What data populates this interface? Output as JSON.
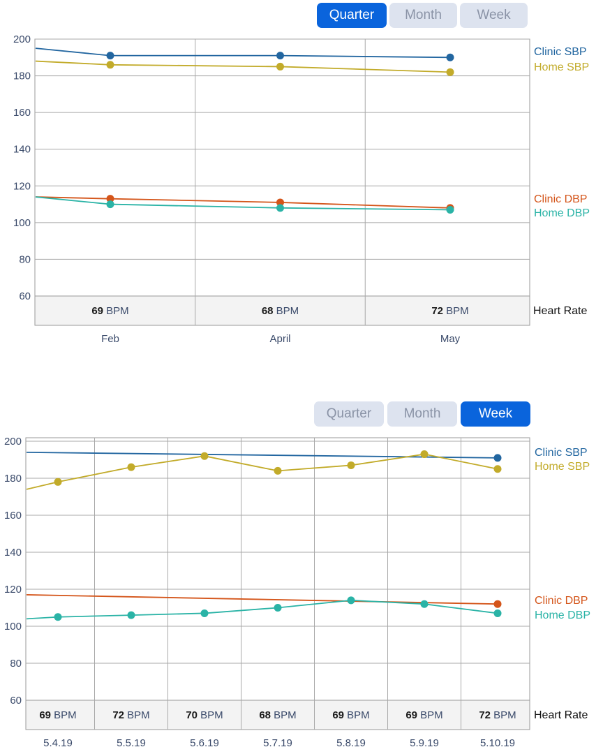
{
  "tabs": {
    "quarter": "Quarter",
    "month": "Month",
    "week": "Week"
  },
  "colors": {
    "clinic_sbp": "#2266a0",
    "home_sbp": "#c2ab2a",
    "clinic_dbp": "#d4551a",
    "home_dbp": "#2ab3a6",
    "active_tab": "#0a64dc",
    "inactive_tab": "#dde3ef"
  },
  "chart_data": [
    {
      "type": "line",
      "active_tab": "Quarter",
      "categories": [
        "Feb",
        "April",
        "May"
      ],
      "ylim": [
        60,
        200
      ],
      "yticks": [
        60,
        80,
        100,
        120,
        140,
        160,
        180,
        200
      ],
      "grid": true,
      "legend_placement": "right",
      "series": [
        {
          "name": "Clinic SBP",
          "key": "clinic_sbp",
          "start": 195,
          "values": [
            191,
            191,
            190
          ]
        },
        {
          "name": "Home SBP",
          "key": "home_sbp",
          "start": 188,
          "values": [
            186,
            185,
            182
          ]
        },
        {
          "name": "Clinic DBP",
          "key": "clinic_dbp",
          "start": 114,
          "values": [
            113,
            111,
            108
          ]
        },
        {
          "name": "Home DBP",
          "key": "home_dbp",
          "start": 114,
          "values": [
            110,
            108,
            107
          ]
        }
      ],
      "heart_rate": {
        "label": "Heart Rate",
        "unit": "BPM",
        "values": [
          69,
          68,
          72
        ]
      }
    },
    {
      "type": "line",
      "active_tab": "Week",
      "categories": [
        "5.4.19",
        "5.5.19",
        "5.6.19",
        "5.7.19",
        "5.8.19",
        "5.9.19",
        "5.10.19"
      ],
      "ylim": [
        60,
        200
      ],
      "yticks": [
        60,
        80,
        100,
        120,
        140,
        160,
        180,
        200
      ],
      "grid": true,
      "legend_placement": "right",
      "series": [
        {
          "name": "Clinic SBP",
          "key": "clinic_sbp",
          "start": 194,
          "values": [
            null,
            null,
            null,
            null,
            null,
            null,
            191
          ]
        },
        {
          "name": "Home SBP",
          "key": "home_sbp",
          "start": 174,
          "values": [
            178,
            186,
            192,
            184,
            187,
            193,
            185
          ]
        },
        {
          "name": "Clinic DBP",
          "key": "clinic_dbp",
          "start": 117,
          "values": [
            null,
            null,
            null,
            null,
            null,
            null,
            112
          ]
        },
        {
          "name": "Home DBP",
          "key": "home_dbp",
          "start": 104,
          "values": [
            105,
            106,
            107,
            110,
            114,
            112,
            107
          ]
        }
      ],
      "heart_rate": {
        "label": "Heart Rate",
        "unit": "BPM",
        "values": [
          69,
          72,
          70,
          68,
          69,
          69,
          72
        ]
      }
    }
  ]
}
